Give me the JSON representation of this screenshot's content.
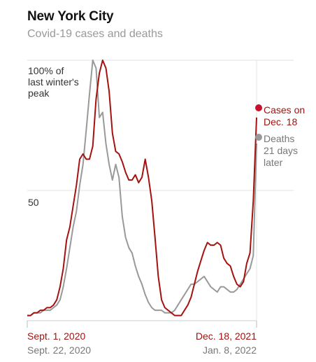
{
  "header": {
    "title": "New York City",
    "subtitle": "Covid-19 cases and deaths"
  },
  "chart_data": {
    "type": "line",
    "ylim": [
      0,
      100
    ],
    "y_ticks": [
      {
        "value": 100,
        "lines": [
          "100% of",
          "last winter's",
          "peak"
        ]
      },
      {
        "value": 50,
        "lines": [
          "50"
        ]
      }
    ],
    "x_labels": {
      "start_cases": "Sept. 1, 2020",
      "start_deaths": "Sept. 22, 2020",
      "end_cases": "Dec. 18, 2021",
      "end_deaths": "Jan. 8, 2022"
    },
    "x_range_cases": [
      "2020-09-01",
      "2021-12-18"
    ],
    "series": [
      {
        "name": "Cases",
        "color": "#a3120f",
        "end_label": [
          "Cases on",
          "Dec. 18"
        ],
        "values": [
          2,
          2,
          3,
          3,
          4,
          4,
          5,
          5,
          6,
          8,
          13,
          20,
          31,
          36,
          44,
          52,
          62,
          64,
          62,
          62,
          67,
          85,
          95,
          100,
          97,
          88,
          72,
          65,
          64,
          61,
          57,
          54,
          54,
          56,
          53,
          55,
          62,
          55,
          46,
          32,
          17,
          8,
          5,
          4,
          3,
          2,
          2,
          2,
          4,
          6,
          9,
          14,
          19,
          23,
          27,
          30,
          29,
          29,
          30,
          29,
          24,
          22,
          21,
          17,
          14,
          13,
          15,
          22,
          26,
          46,
          78
        ]
      },
      {
        "name": "Deaths",
        "color": "#999999",
        "end_label": [
          "Deaths",
          "21 days",
          "later"
        ],
        "values": [
          2,
          2,
          3,
          3,
          3,
          4,
          4,
          4,
          5,
          6,
          8,
          13,
          20,
          28,
          36,
          42,
          52,
          60,
          73,
          87,
          100,
          97,
          78,
          80,
          68,
          60,
          54,
          60,
          55,
          40,
          32,
          28,
          26,
          21,
          17,
          14,
          10,
          7,
          5,
          4,
          4,
          4,
          3,
          3,
          3,
          4,
          6,
          8,
          10,
          12,
          14,
          14,
          15,
          16,
          17,
          15,
          13,
          12,
          11,
          13,
          13,
          12,
          11,
          11,
          12,
          14,
          16,
          18,
          20,
          25,
          68
        ]
      }
    ]
  }
}
